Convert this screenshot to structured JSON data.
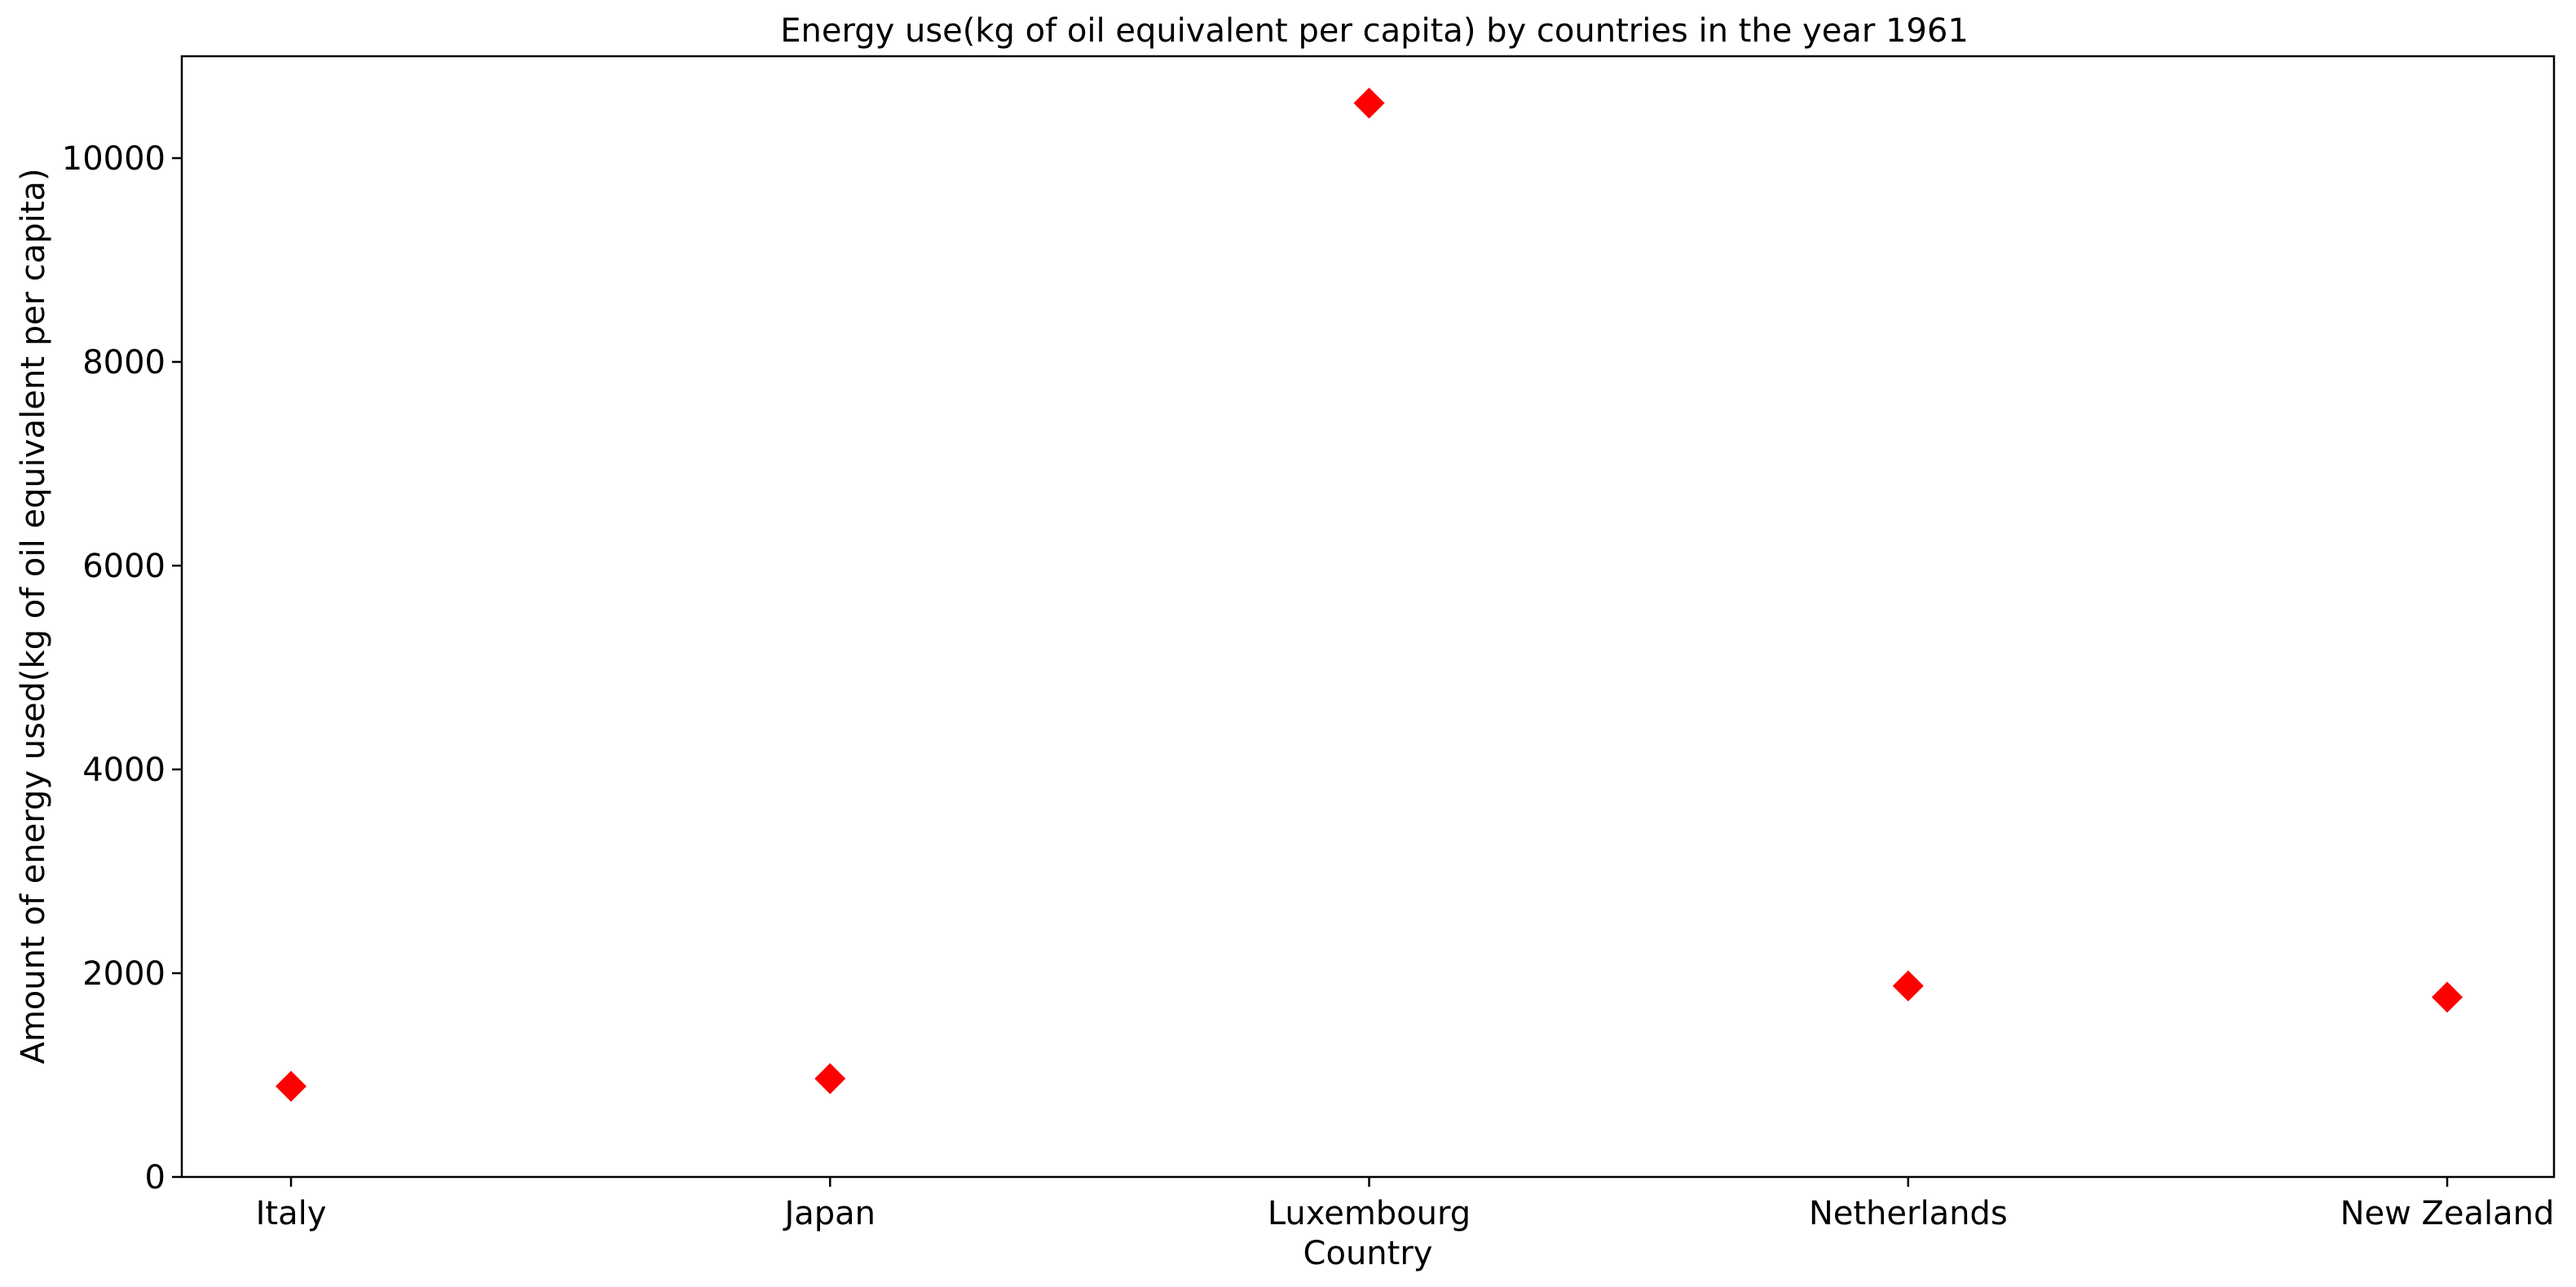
{
  "chart_data": {
    "type": "scatter",
    "title": "Energy use(kg of oil equivalent per capita) by countries in the year 1961",
    "xlabel": "Country",
    "ylabel": "Amount of energy used(kg of oil equivalent per capita)",
    "categories": [
      "Italy",
      "Japan",
      "Luxembourg",
      "Netherlands",
      "New Zealand"
    ],
    "values": [
      890,
      965,
      10540,
      1875,
      1765
    ],
    "ylim": [
      0,
      11000
    ],
    "yticks": [
      0,
      2000,
      4000,
      6000,
      8000,
      10000
    ],
    "marker": "diamond",
    "marker_color": "#ff0000",
    "grid": false
  }
}
